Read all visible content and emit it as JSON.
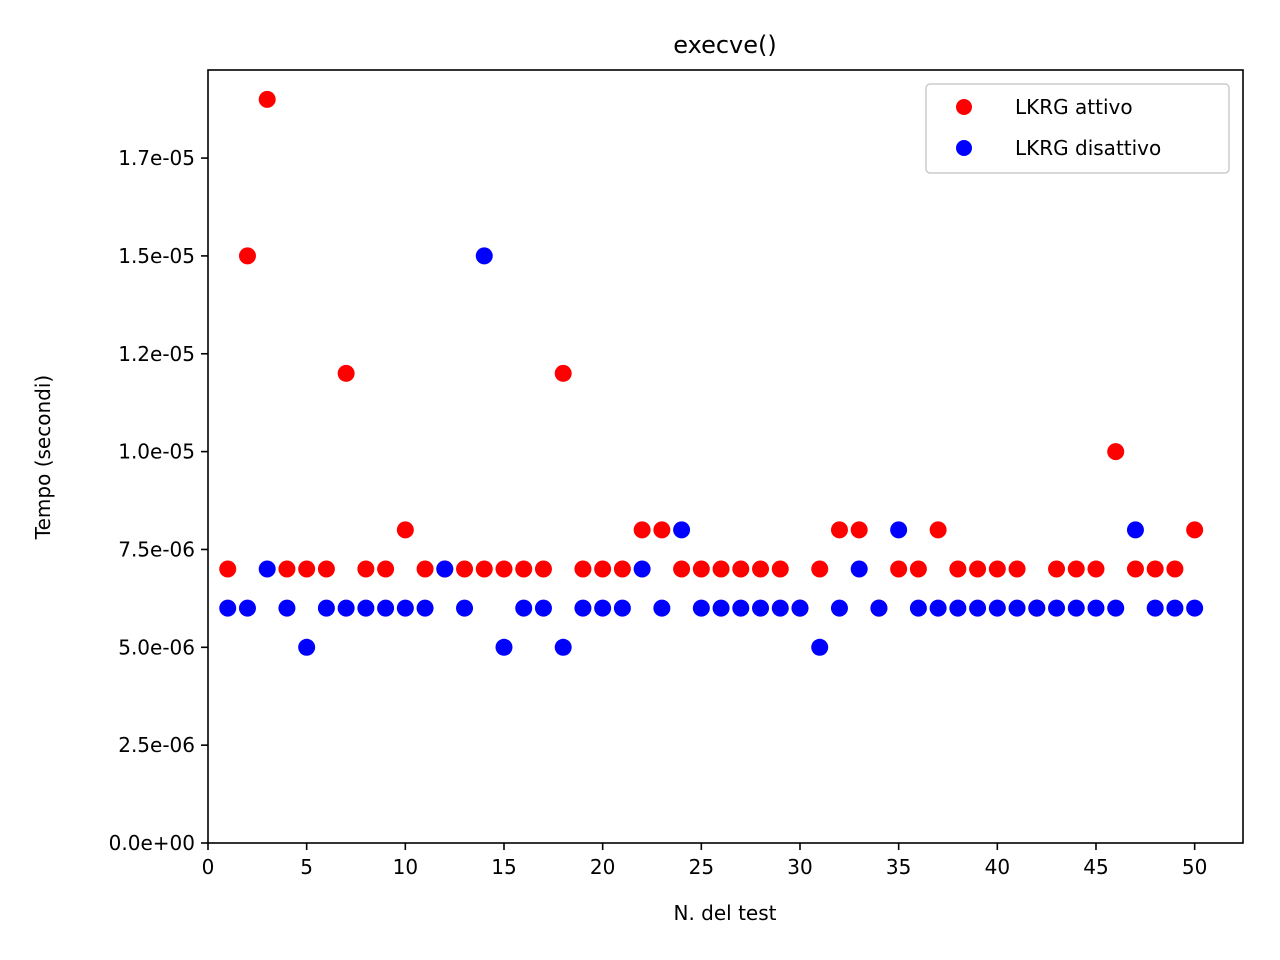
{
  "chart_data": {
    "type": "scatter",
    "title": "execve()",
    "xlabel": "N. del test",
    "ylabel": "Tempo (secondi)",
    "xlim": [
      0,
      52.45
    ],
    "ylim": [
      0,
      1.975e-05
    ],
    "xticks": [
      0,
      5,
      10,
      15,
      20,
      25,
      30,
      35,
      40,
      45,
      50
    ],
    "xtick_labels": [
      "0",
      "5",
      "10",
      "15",
      "20",
      "25",
      "30",
      "35",
      "40",
      "45",
      "50"
    ],
    "yticks": [
      0,
      2.5e-06,
      5e-06,
      7.5e-06,
      1e-05,
      1.25e-05,
      1.5e-05,
      1.75e-05
    ],
    "ytick_labels": [
      "0.0e+00",
      "2.5e-06",
      "5.0e-06",
      "7.5e-06",
      "1.0e-05",
      "1.2e-05",
      "1.5e-05",
      "1.7e-05"
    ],
    "grid": false,
    "legend_position": "top-right",
    "x": [
      1,
      2,
      3,
      4,
      5,
      6,
      7,
      8,
      9,
      10,
      11,
      12,
      13,
      14,
      15,
      16,
      17,
      18,
      19,
      20,
      21,
      22,
      23,
      24,
      25,
      26,
      27,
      28,
      29,
      30,
      31,
      32,
      33,
      34,
      35,
      36,
      37,
      38,
      39,
      40,
      41,
      42,
      43,
      44,
      45,
      46,
      47,
      48,
      49,
      50
    ],
    "series": [
      {
        "name": "LKRG attivo",
        "color": "#ff0000",
        "values": [
          7e-06,
          1.5e-05,
          1.9e-05,
          7e-06,
          7e-06,
          7e-06,
          1.2e-05,
          7e-06,
          7e-06,
          8e-06,
          7e-06,
          7e-06,
          7e-06,
          7e-06,
          7e-06,
          7e-06,
          7e-06,
          1.2e-05,
          7e-06,
          7e-06,
          7e-06,
          8e-06,
          8e-06,
          7e-06,
          7e-06,
          7e-06,
          7e-06,
          7e-06,
          7e-06,
          6e-06,
          7e-06,
          8e-06,
          8e-06,
          6e-06,
          7e-06,
          7e-06,
          8e-06,
          7e-06,
          7e-06,
          7e-06,
          7e-06,
          6e-06,
          7e-06,
          7e-06,
          7e-06,
          1e-05,
          7e-06,
          7e-06,
          7e-06,
          8e-06
        ]
      },
      {
        "name": "LKRG disattivo",
        "color": "#0000ff",
        "values": [
          6e-06,
          6e-06,
          7e-06,
          6e-06,
          5e-06,
          6e-06,
          6e-06,
          6e-06,
          6e-06,
          6e-06,
          6e-06,
          7e-06,
          6e-06,
          1.5e-05,
          5e-06,
          6e-06,
          6e-06,
          5e-06,
          6e-06,
          6e-06,
          6e-06,
          7e-06,
          6e-06,
          8e-06,
          6e-06,
          6e-06,
          6e-06,
          6e-06,
          6e-06,
          6e-06,
          5e-06,
          6e-06,
          7e-06,
          6e-06,
          8e-06,
          6e-06,
          6e-06,
          6e-06,
          6e-06,
          6e-06,
          6e-06,
          6e-06,
          6e-06,
          6e-06,
          6e-06,
          6e-06,
          8e-06,
          6e-06,
          6e-06,
          6e-06
        ]
      }
    ]
  }
}
